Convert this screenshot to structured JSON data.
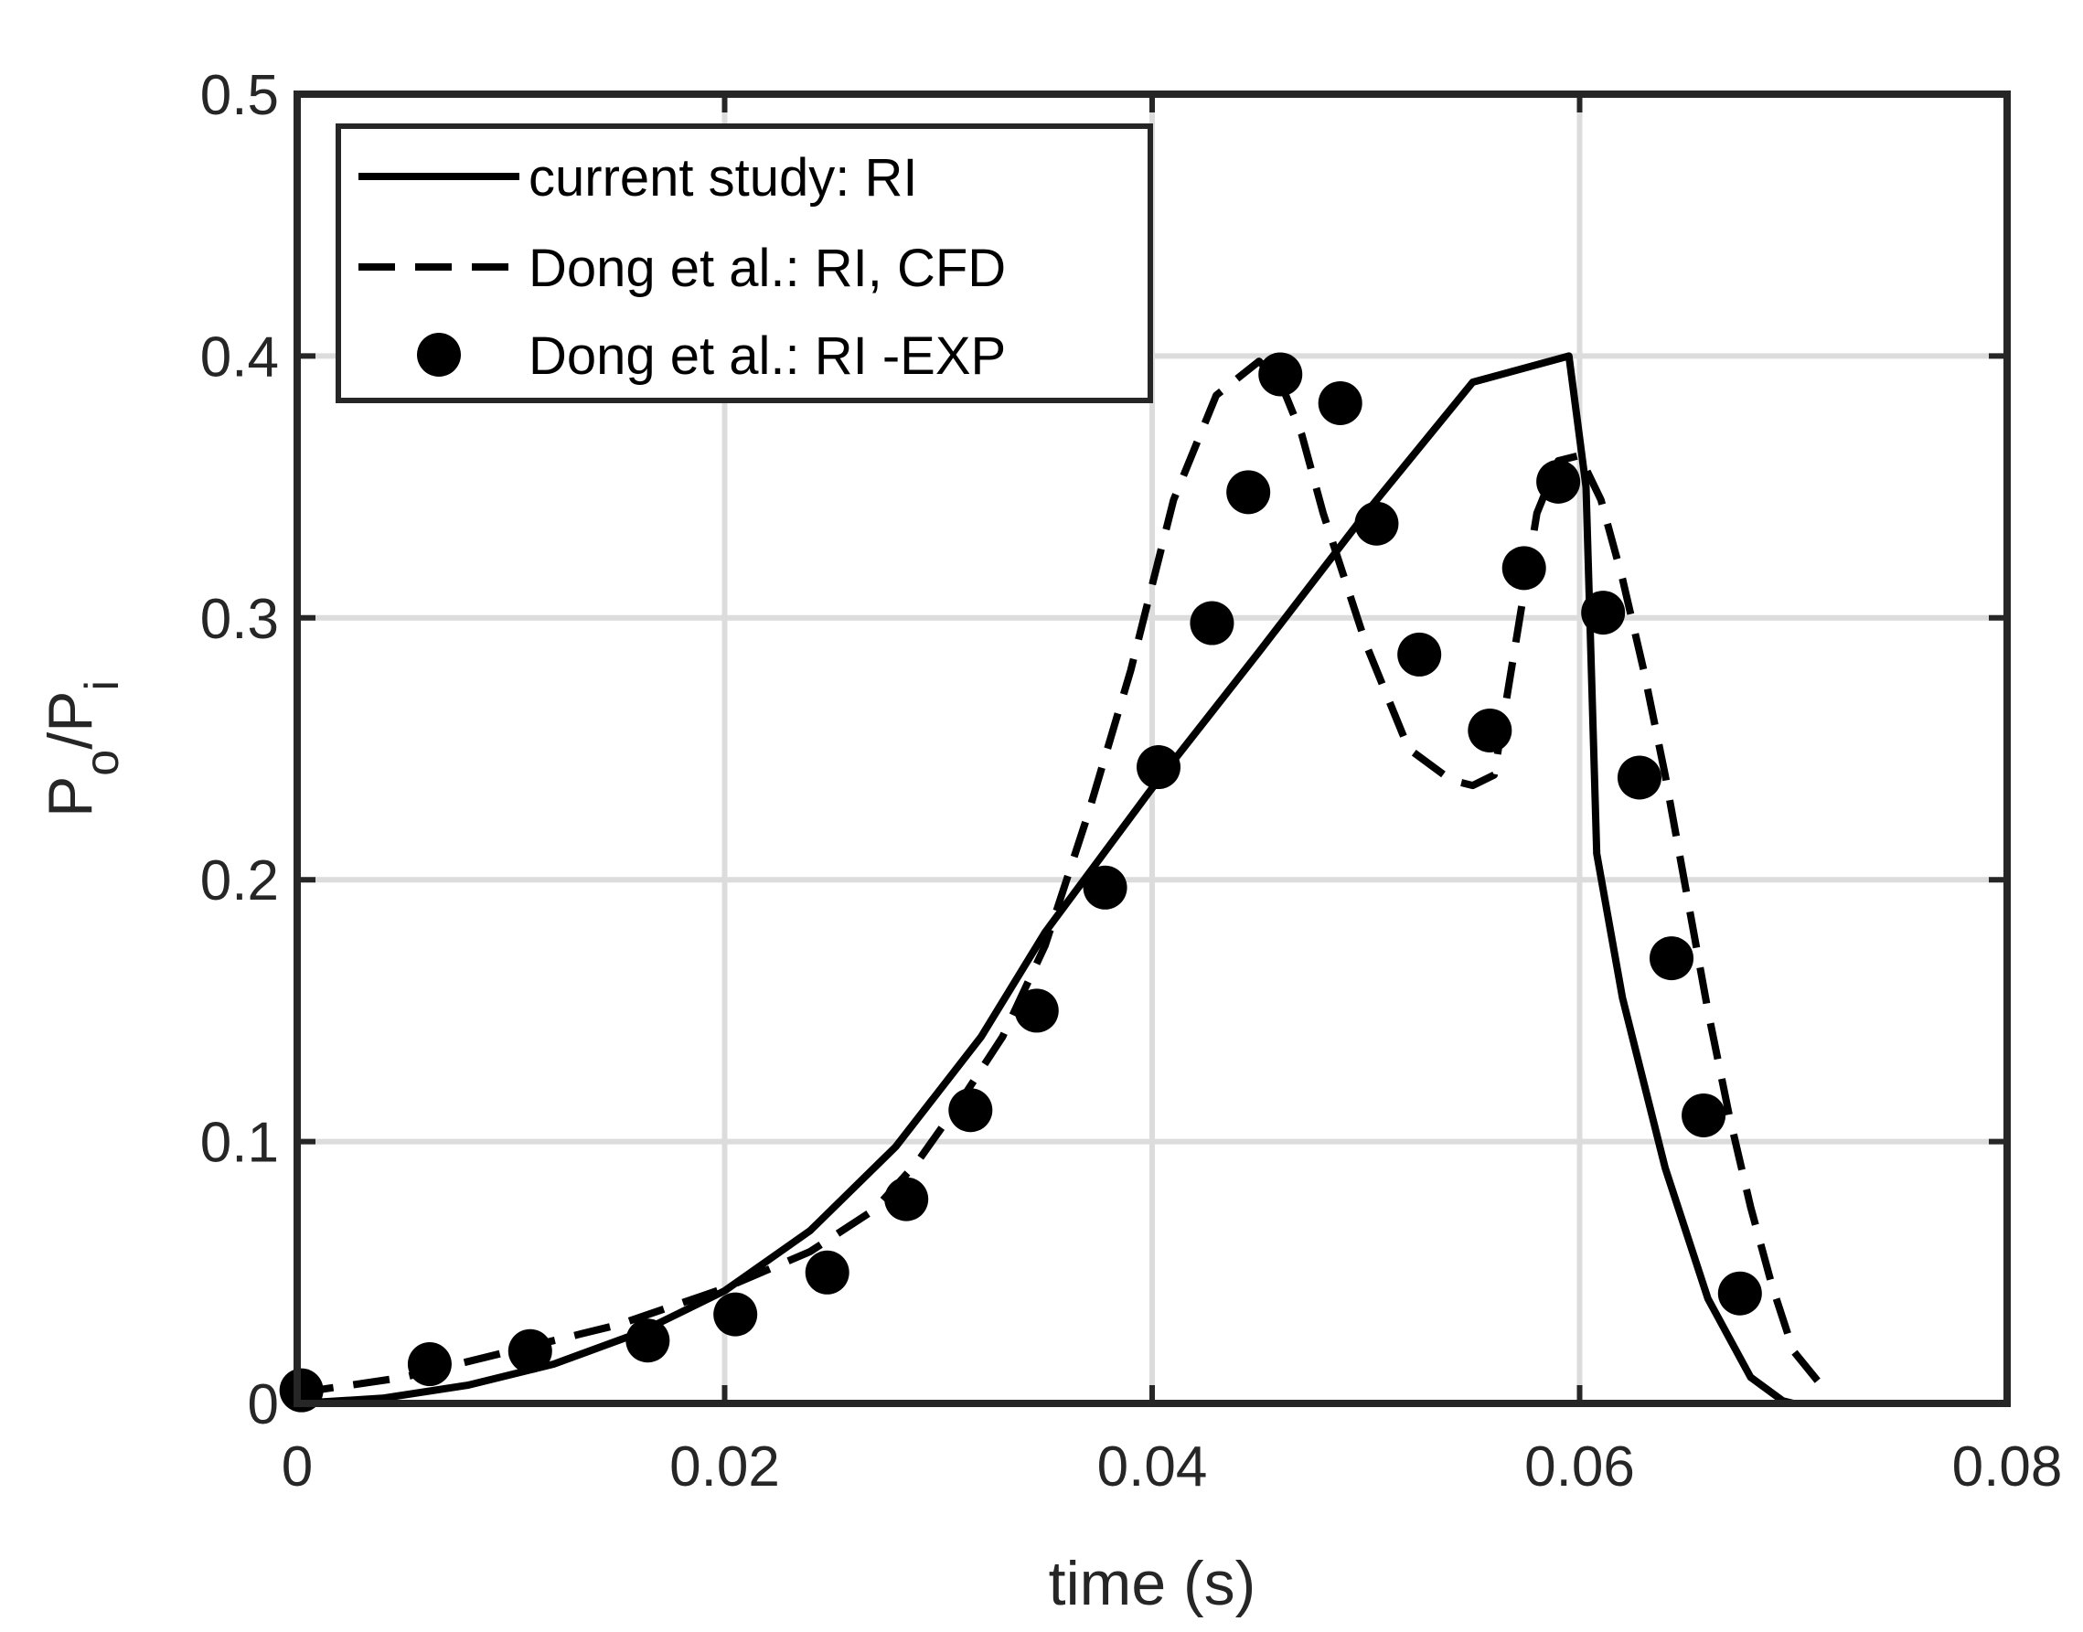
{
  "chart_data": {
    "type": "line",
    "title": "",
    "xlabel": "time (s)",
    "ylabel_main": "P",
    "ylabel_sub1": "o",
    "ylabel_sep": "/P",
    "ylabel_sub2": "i",
    "xlim": [
      0,
      0.08
    ],
    "ylim": [
      0,
      0.5
    ],
    "xticks": [
      0,
      0.02,
      0.04,
      0.06,
      0.08
    ],
    "xtick_labels": [
      "0",
      "0.02",
      "0.04",
      "0.06",
      "0.08"
    ],
    "yticks": [
      0,
      0.1,
      0.2,
      0.3,
      0.4,
      0.5
    ],
    "ytick_labels": [
      "0",
      "0.1",
      "0.2",
      "0.3",
      "0.4",
      "0.5"
    ],
    "grid": true,
    "legend_position": "top-left",
    "series": [
      {
        "name": "current study: RI",
        "style": "solid",
        "x": [
          0,
          0.004,
          0.008,
          0.012,
          0.016,
          0.02,
          0.024,
          0.028,
          0.032,
          0.035,
          0.04,
          0.045,
          0.05,
          0.055,
          0.0595,
          0.0603,
          0.0608,
          0.062,
          0.064,
          0.066,
          0.068,
          0.0695,
          0.07,
          0.08
        ],
        "y": [
          0,
          0.002,
          0.007,
          0.015,
          0.027,
          0.043,
          0.066,
          0.098,
          0.14,
          0.18,
          0.235,
          0.287,
          0.34,
          0.39,
          0.4,
          0.35,
          0.21,
          0.155,
          0.09,
          0.04,
          0.01,
          0.001,
          0,
          0
        ]
      },
      {
        "name": "Dong et al.: RI, CFD",
        "style": "dashed",
        "x": [
          0,
          0.005,
          0.01,
          0.015,
          0.02,
          0.024,
          0.027,
          0.029,
          0.031,
          0.033,
          0.035,
          0.037,
          0.039,
          0.041,
          0.043,
          0.045,
          0.046,
          0.047,
          0.048,
          0.05,
          0.052,
          0.054,
          0.055,
          0.056,
          0.057,
          0.058,
          0.059,
          0.06,
          0.061,
          0.062,
          0.063,
          0.064,
          0.065,
          0.066,
          0.067,
          0.068,
          0.069,
          0.07,
          0.0712,
          0.0718
        ],
        "y": [
          0.004,
          0.01,
          0.02,
          0.03,
          0.044,
          0.058,
          0.074,
          0.092,
          0.115,
          0.14,
          0.175,
          0.225,
          0.28,
          0.345,
          0.385,
          0.398,
          0.39,
          0.37,
          0.34,
          0.29,
          0.25,
          0.238,
          0.236,
          0.24,
          0.29,
          0.34,
          0.36,
          0.362,
          0.345,
          0.315,
          0.28,
          0.24,
          0.195,
          0.15,
          0.11,
          0.075,
          0.045,
          0.02,
          0.008,
          0.004
        ]
      },
      {
        "name": "Dong et al.: RI -EXP",
        "style": "markers",
        "x": [
          0.0002,
          0.0062,
          0.0109,
          0.0164,
          0.0205,
          0.0248,
          0.0285,
          0.0315,
          0.0346,
          0.0378,
          0.0403,
          0.0428,
          0.0445,
          0.046,
          0.0488,
          0.0505,
          0.0525,
          0.0558,
          0.0574,
          0.059,
          0.0611,
          0.0628,
          0.0643,
          0.0658,
          0.0675
        ],
        "y": [
          0.005,
          0.015,
          0.02,
          0.024,
          0.034,
          0.05,
          0.078,
          0.112,
          0.15,
          0.197,
          0.243,
          0.298,
          0.348,
          0.393,
          0.382,
          0.336,
          0.286,
          0.257,
          0.319,
          0.352,
          0.302,
          0.239,
          0.17,
          0.11,
          0.042
        ]
      }
    ]
  }
}
